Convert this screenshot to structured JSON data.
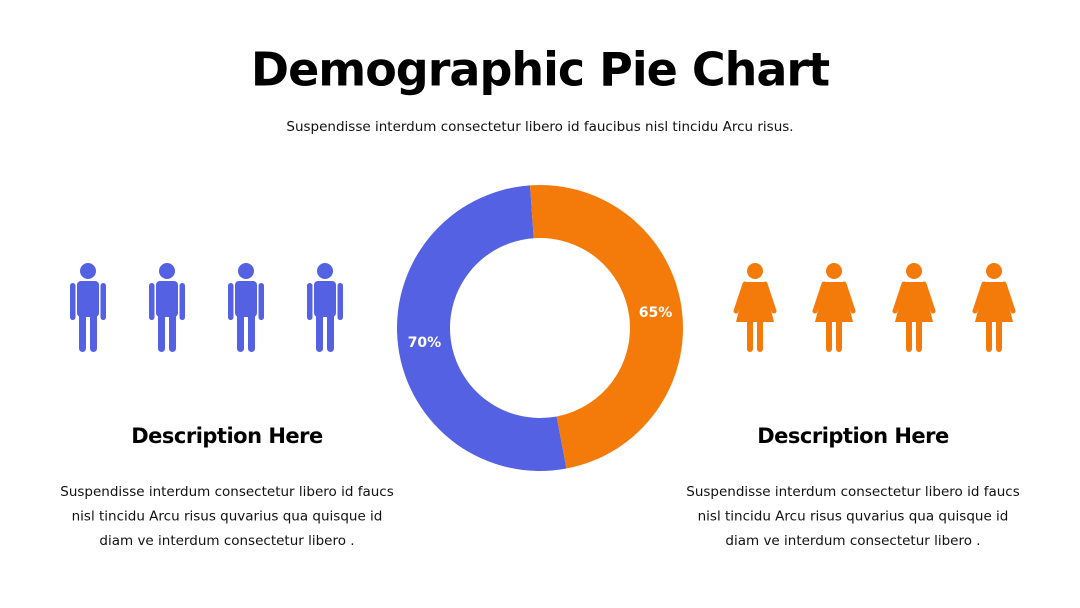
{
  "header": {
    "title": "Demographic Pie Chart",
    "subtitle": "Suspendisse interdum consectetur libero id faucibus nisl tincidu Arcu risus."
  },
  "chart_data": {
    "type": "pie",
    "donut": true,
    "values": [
      70,
      65
    ],
    "value_labels": [
      "70%",
      "65%"
    ],
    "colors": [
      "#5461e2",
      "#f47b0a"
    ]
  },
  "panels": [
    {
      "heading": "Description Here",
      "lines": [
        "Suspendisse interdum consectetur libero id faucs",
        "nisl tincidu Arcu risus quvarius qua quisque id",
        "diam ve interdum consectetur libero ."
      ]
    },
    {
      "heading": "Description Here",
      "lines": [
        "Suspendisse interdum consectetur libero id faucs",
        "nisl tincidu Arcu risus quvarius qua quisque id",
        "diam ve interdum consectetur libero ."
      ]
    }
  ]
}
